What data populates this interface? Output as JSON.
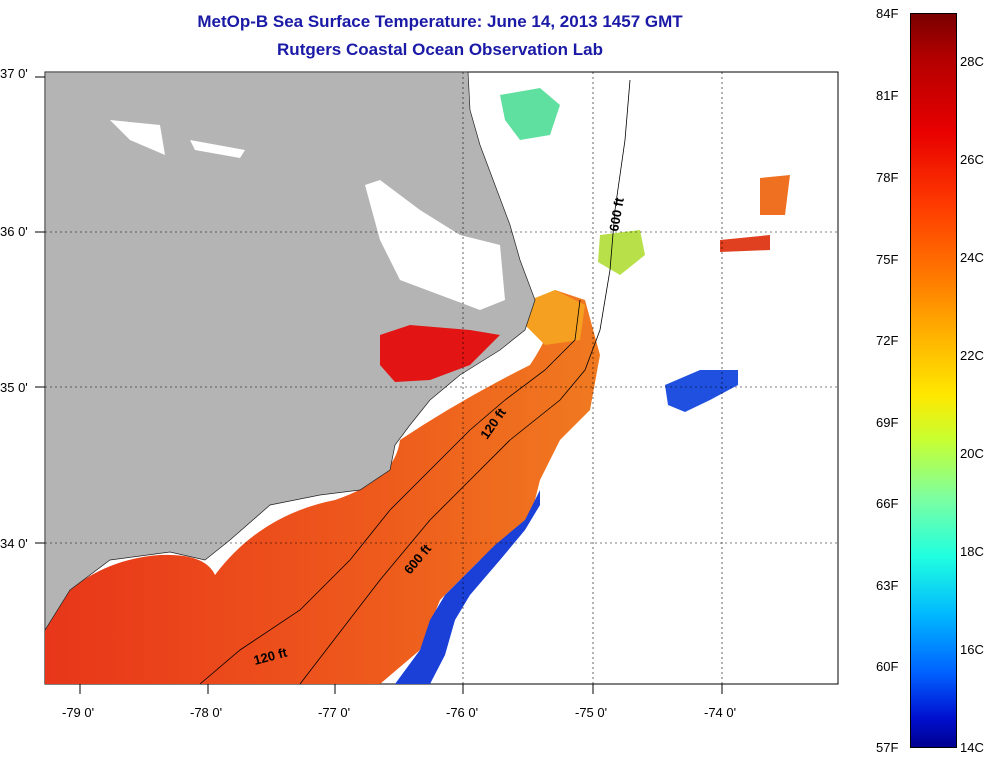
{
  "title": {
    "line1": "MetOp-B Sea Surface Temperature:  June 14, 2013 1457 GMT",
    "line2": "Rutgers Coastal Ocean Observation Lab"
  },
  "map": {
    "lat_labels": [
      "37 0'",
      "36 0'",
      "35 0'",
      "34 0'"
    ],
    "lon_labels": [
      "-79 0'",
      "-78 0'",
      "-77 0'",
      "-76 0'",
      "-75 0'",
      "-74 0'"
    ],
    "contours": [
      "600 ft",
      "120 ft",
      "600 ft",
      "120 ft"
    ],
    "colors": {
      "land": "#b4b4b4",
      "warm": "#e84a1a",
      "cool": "#1a40d8",
      "title": "#1a1aa6"
    }
  },
  "colorbar": {
    "fahrenheit": [
      "84F",
      "81F",
      "78F",
      "75F",
      "72F",
      "69F",
      "66F",
      "63F",
      "60F",
      "57F"
    ],
    "celsius": [
      "28C",
      "26C",
      "24C",
      "22C",
      "20C",
      "18C",
      "16C",
      "14C"
    ]
  }
}
